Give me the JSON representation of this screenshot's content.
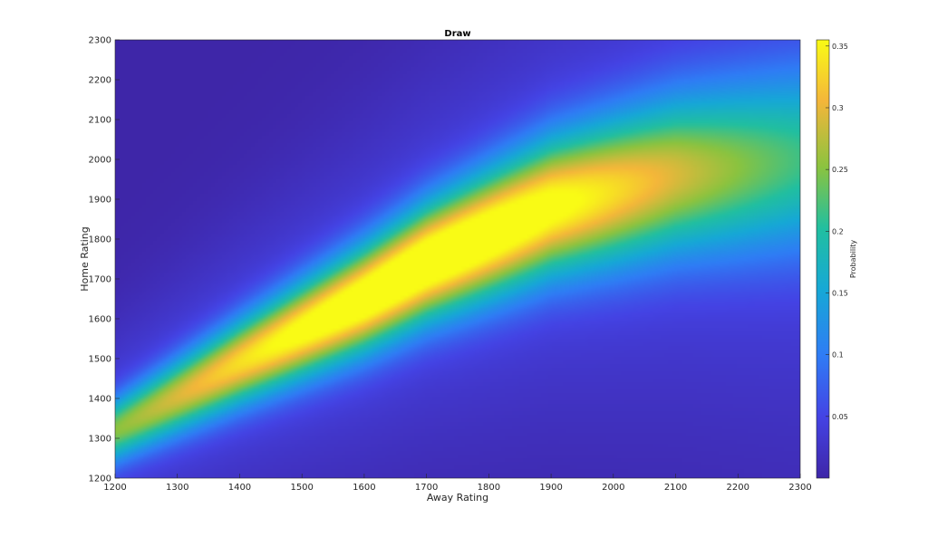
{
  "chart_data": {
    "type": "heatmap",
    "title": "Draw",
    "xlabel": "Away Rating",
    "ylabel": "Home Rating",
    "xlim": [
      1200,
      2300
    ],
    "ylim": [
      1200,
      2300
    ],
    "x_ticks": [
      "1200",
      "1300",
      "1400",
      "1500",
      "1600",
      "1700",
      "1800",
      "1900",
      "2000",
      "2100",
      "2200",
      "2300"
    ],
    "y_ticks": [
      "1200",
      "1300",
      "1400",
      "1500",
      "1600",
      "1700",
      "1800",
      "1900",
      "2000",
      "2100",
      "2200",
      "2300"
    ],
    "colorbar": {
      "label": "Probability",
      "ticks": [
        "0.05",
        "0.1",
        "0.15",
        "0.2",
        "0.25",
        "0.3",
        "0.35"
      ],
      "range": [
        0.0,
        0.355
      ]
    },
    "colormap": "parula",
    "ridge": {
      "description_points": [
        {
          "away": 1200,
          "home": 1320
        },
        {
          "away": 1400,
          "home": 1490
        },
        {
          "away": 1600,
          "home": 1650
        },
        {
          "away": 1700,
          "home": 1740
        },
        {
          "away": 1900,
          "home": 1880
        },
        {
          "away": 2100,
          "home": 1960
        },
        {
          "away": 2300,
          "home": 2000
        }
      ],
      "peak": {
        "away": 1700,
        "home": 1740,
        "value": 0.355
      }
    },
    "grid": false
  }
}
